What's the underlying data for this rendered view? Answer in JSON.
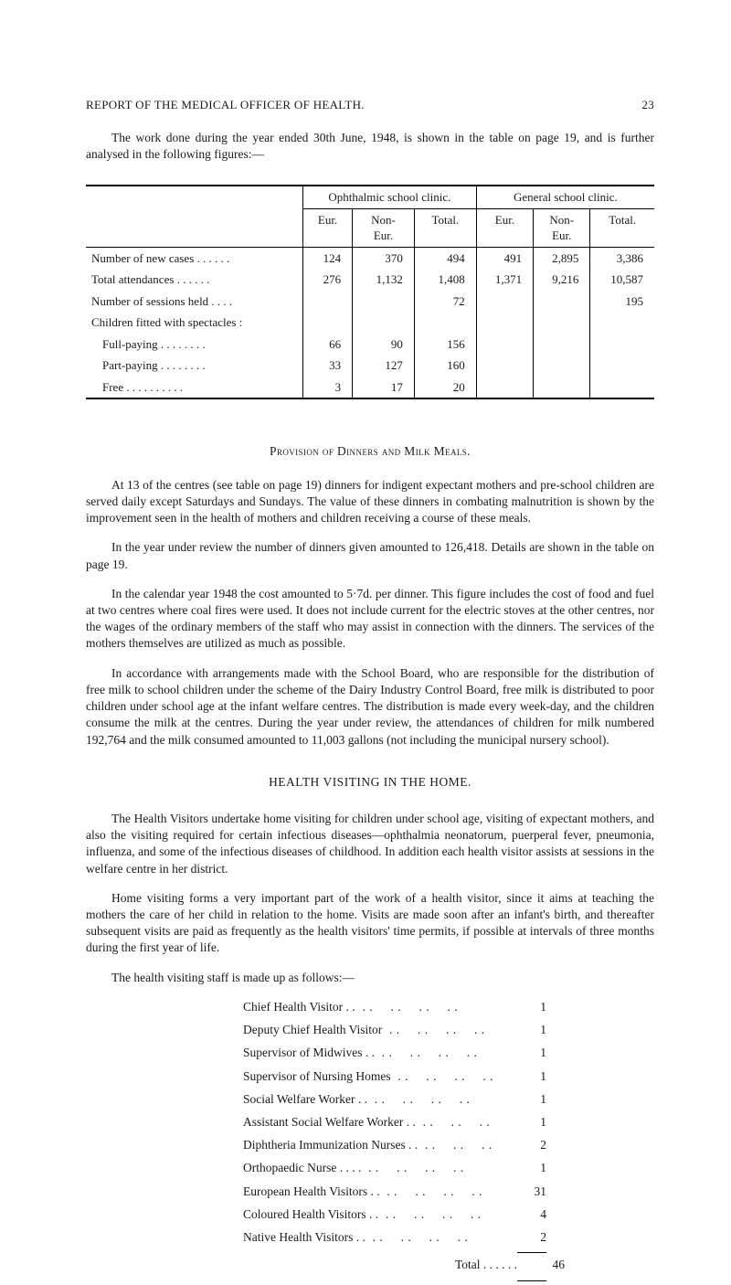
{
  "page": {
    "running_head": "REPORT OF THE MEDICAL OFFICER OF HEALTH.",
    "page_number": "23",
    "lead_para": "The work done during the year ended 30th June, 1948, is shown in the table on page 19, and is further analysed in the following figures:—"
  },
  "table": {
    "group_headers": {
      "oph": "Ophthalmic school clinic.",
      "gen": "General school clinic."
    },
    "sub_headers": {
      "eur": "Eur.",
      "non_eur": "Non-\nEur.",
      "total": "Total."
    },
    "rows": [
      {
        "desc": "Number of new cases  . .      . .      . .",
        "o_eur": "124",
        "o_non": "370",
        "o_tot": "494",
        "g_eur": "491",
        "g_non": "2,895",
        "g_tot": "3,386"
      },
      {
        "desc": "Total attendances            . .      . .      . .",
        "o_eur": "276",
        "o_non": "1,132",
        "o_tot": "1,408",
        "g_eur": "1,371",
        "g_non": "9,216",
        "g_tot": "10,587"
      },
      {
        "desc": "Number of sessions held        . .      . .",
        "o_eur": "",
        "o_non": "",
        "o_tot": "72",
        "g_eur": "",
        "g_non": "",
        "g_tot": "195"
      },
      {
        "desc": "Children fitted with spectacles :",
        "o_eur": "",
        "o_non": "",
        "o_tot": "",
        "g_eur": "",
        "g_non": "",
        "g_tot": ""
      },
      {
        "desc": "Full-paying     . .      . .      . .      . .",
        "indent": true,
        "o_eur": "66",
        "o_non": "90",
        "o_tot": "156",
        "g_eur": "",
        "g_non": "",
        "g_tot": ""
      },
      {
        "desc": "Part-paying    . .      . .      . .      . .",
        "indent": true,
        "o_eur": "33",
        "o_non": "127",
        "o_tot": "160",
        "g_eur": "",
        "g_non": "",
        "g_tot": ""
      },
      {
        "desc": "Free     . .      . .      . .      . .      . .",
        "indent": true,
        "o_eur": "3",
        "o_non": "17",
        "o_tot": "20",
        "g_eur": "",
        "g_non": "",
        "g_tot": ""
      }
    ]
  },
  "dinners": {
    "title": "Provision of Dinners and Milk Meals.",
    "p1": "At 13 of the centres (see table on page 19) dinners for indigent expectant mothers and pre-school children are served daily except Saturdays and Sundays. The value of these dinners in combating malnutrition is shown by the improvement seen in the health of mothers and children receiving a course of these meals.",
    "p2": "In the year under review the number of dinners given amounted to 126,418. Details are shown in the table on page 19.",
    "p3": "In the calendar year 1948 the cost amounted to 5·7d. per dinner. This figure includes the cost of food and fuel at two centres where coal fires were used. It does not include current for the electric stoves at the other centres, nor the wages of the ordinary members of the staff who may assist in connec­tion with the dinners. The services of the mothers themselves are utilized as much as possible.",
    "p4": "In accordance with arrangements made with the School Board, who are responsible for the distri­bution of free milk to school children under the scheme of the Dairy Industry Control Board, free milk is distributed to poor children under school age at the infant welfare centres. The distribution is made every week-day, and the children consume the milk at the centres. During the year under review, the attendances of children for milk numbered 192,764 and the milk consumed amounted to 11,003 gallons (not including the municipal nursery school)."
  },
  "visiting": {
    "title": "HEALTH VISITING IN THE HOME.",
    "p1": "The Health Visitors undertake home visiting for children under school age, visiting of expectant mothers, and also the visiting required for certain infectious diseases—ophthalmia neonatorum, puer­peral fever, pneumonia, influenza, and some of the infectious diseases of childhood. In addition each health visitor assists at sessions in the welfare centre in her district.",
    "p2": "Home visiting forms a very important part of the work of a health visitor, since it aims at teaching the mothers the care of her child in relation to the home. Visits are made soon after an infant's birth, and thereafter subsequent visits are paid as frequently as the health visitors' time permits, if possible at intervals of three months during the first year of life.",
    "p3": "The health visiting staff is made up as follows:—"
  },
  "staff": {
    "items": [
      {
        "label": "Chief Health Visitor . .",
        "count": "1"
      },
      {
        "label": "Deputy Chief Health Visitor",
        "count": "1"
      },
      {
        "label": "Supervisor of Midwives       . .",
        "count": "1"
      },
      {
        "label": "Supervisor of Nursing Homes",
        "count": "1"
      },
      {
        "label": "Social Welfare Worker        . .",
        "count": "1"
      },
      {
        "label": "Assistant Social Welfare Worker  . .",
        "count": "1",
        "short": true
      },
      {
        "label": "Diphtheria Immunization Nurses  . .",
        "count": "2",
        "short": true
      },
      {
        "label": "Orthopaedic Nurse  . .        . .",
        "count": "1"
      },
      {
        "label": "European Health Visitors  . .",
        "count": "31"
      },
      {
        "label": "Coloured Health Visitors    . .",
        "count": "4"
      },
      {
        "label": "Native Health Visitors        . .",
        "count": "2"
      }
    ],
    "total_label": "Total  . .      . .      . .",
    "total": "46"
  }
}
